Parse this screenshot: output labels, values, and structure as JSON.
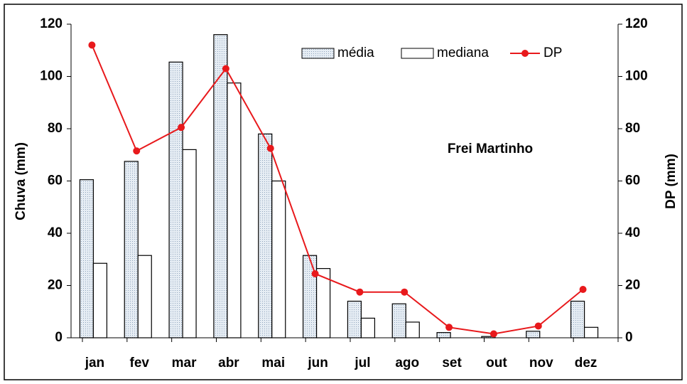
{
  "chart_data": {
    "type": "bar_line",
    "annotation": "Frei Martinho",
    "y_label": "Chuva (mm)",
    "y2_label": "DP (mm)",
    "categories": [
      "jan",
      "fev",
      "mar",
      "abr",
      "mai",
      "jun",
      "jul",
      "ago",
      "set",
      "out",
      "nov",
      "dez"
    ],
    "series": [
      {
        "name": "média",
        "type": "bar",
        "color": "#d3dde8",
        "values": [
          60.5,
          67.5,
          105.5,
          116,
          78,
          31.5,
          14,
          13,
          2,
          0.5,
          2.5,
          14
        ]
      },
      {
        "name": "mediana",
        "type": "bar",
        "color": "#ffffff",
        "values": [
          28.5,
          31.5,
          72,
          97.5,
          60,
          26.5,
          7.5,
          6,
          0,
          0,
          0,
          4
        ]
      },
      {
        "name": "DP",
        "type": "line",
        "axis": "y2",
        "color": "#e8191c",
        "values": [
          112,
          71.5,
          80.5,
          103,
          72.5,
          24.5,
          17.5,
          17.5,
          4,
          1.5,
          4.5,
          18.5
        ]
      }
    ],
    "ylim": [
      0,
      120
    ],
    "yticks": [
      0,
      20,
      40,
      60,
      80,
      100,
      120
    ],
    "y2lim": [
      0,
      120
    ],
    "y2ticks": [
      0,
      20,
      40,
      60,
      80,
      100,
      120
    ]
  }
}
